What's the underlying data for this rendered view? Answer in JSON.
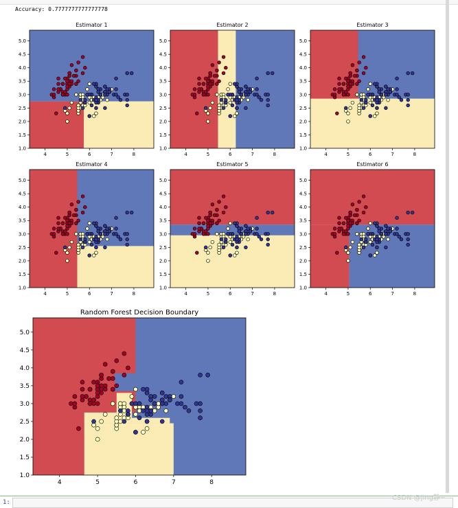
{
  "output": {
    "accuracy_text": "Accuracy: 0.7777777777777778",
    "prompt": "1:",
    "watermark": "CSDN @jing静~"
  },
  "colors": {
    "red": "#d24b50",
    "yellow": "#faecb4",
    "blue": "#6078b8",
    "pt_red": "#a50026",
    "pt_yellow": "#feffbe",
    "pt_blue": "#313695"
  },
  "points": [
    [
      5.1,
      3.5,
      0
    ],
    [
      4.9,
      3.0,
      0
    ],
    [
      4.7,
      3.2,
      0
    ],
    [
      4.6,
      3.1,
      0
    ],
    [
      5.0,
      3.6,
      0
    ],
    [
      5.4,
      3.9,
      0
    ],
    [
      4.6,
      3.4,
      0
    ],
    [
      5.0,
      3.4,
      0
    ],
    [
      4.4,
      2.9,
      0
    ],
    [
      4.9,
      3.1,
      0
    ],
    [
      5.4,
      3.7,
      0
    ],
    [
      4.8,
      3.4,
      0
    ],
    [
      4.8,
      3.0,
      0
    ],
    [
      4.3,
      3.0,
      0
    ],
    [
      5.8,
      4.0,
      0
    ],
    [
      5.7,
      4.4,
      0
    ],
    [
      5.4,
      3.9,
      0
    ],
    [
      5.1,
      3.5,
      0
    ],
    [
      5.7,
      3.8,
      0
    ],
    [
      5.1,
      3.8,
      0
    ],
    [
      5.4,
      3.4,
      0
    ],
    [
      5.1,
      3.7,
      0
    ],
    [
      4.6,
      3.6,
      0
    ],
    [
      5.1,
      3.3,
      0
    ],
    [
      4.8,
      3.4,
      0
    ],
    [
      5.0,
      3.0,
      0
    ],
    [
      5.0,
      3.4,
      0
    ],
    [
      5.2,
      3.5,
      0
    ],
    [
      5.2,
      3.4,
      0
    ],
    [
      4.7,
      3.2,
      0
    ],
    [
      4.8,
      3.1,
      0
    ],
    [
      5.4,
      3.4,
      0
    ],
    [
      5.2,
      4.1,
      0
    ],
    [
      5.5,
      4.2,
      0
    ],
    [
      4.9,
      3.1,
      0
    ],
    [
      5.0,
      3.2,
      0
    ],
    [
      5.5,
      3.5,
      0
    ],
    [
      4.9,
      3.6,
      0
    ],
    [
      4.4,
      3.0,
      0
    ],
    [
      5.1,
      3.4,
      0
    ],
    [
      5.0,
      3.5,
      0
    ],
    [
      4.5,
      2.3,
      0
    ],
    [
      4.4,
      3.2,
      0
    ],
    [
      5.0,
      3.5,
      0
    ],
    [
      5.1,
      3.8,
      0
    ],
    [
      4.8,
      3.0,
      0
    ],
    [
      5.1,
      3.8,
      0
    ],
    [
      4.6,
      3.2,
      0
    ],
    [
      5.3,
      3.7,
      0
    ],
    [
      5.0,
      3.3,
      0
    ],
    [
      7.0,
      3.2,
      1
    ],
    [
      6.4,
      3.2,
      1
    ],
    [
      6.9,
      3.1,
      1
    ],
    [
      5.5,
      2.3,
      1
    ],
    [
      6.5,
      2.8,
      1
    ],
    [
      5.7,
      2.8,
      1
    ],
    [
      6.3,
      3.3,
      1
    ],
    [
      4.9,
      2.4,
      1
    ],
    [
      6.6,
      2.9,
      1
    ],
    [
      5.2,
      2.7,
      1
    ],
    [
      5.0,
      2.0,
      1
    ],
    [
      5.9,
      3.0,
      1
    ],
    [
      6.0,
      2.2,
      1
    ],
    [
      6.1,
      2.9,
      1
    ],
    [
      5.6,
      2.9,
      1
    ],
    [
      6.7,
      3.1,
      1
    ],
    [
      5.6,
      3.0,
      1
    ],
    [
      5.8,
      2.7,
      1
    ],
    [
      6.2,
      2.2,
      1
    ],
    [
      5.6,
      2.5,
      1
    ],
    [
      5.9,
      3.2,
      1
    ],
    [
      6.1,
      2.8,
      1
    ],
    [
      6.3,
      2.5,
      1
    ],
    [
      6.1,
      2.8,
      1
    ],
    [
      6.4,
      2.9,
      1
    ],
    [
      6.6,
      3.0,
      1
    ],
    [
      6.8,
      2.8,
      1
    ],
    [
      6.7,
      3.0,
      1
    ],
    [
      6.0,
      2.9,
      1
    ],
    [
      5.7,
      2.6,
      1
    ],
    [
      5.5,
      2.4,
      1
    ],
    [
      5.5,
      2.4,
      1
    ],
    [
      5.8,
      2.7,
      1
    ],
    [
      6.0,
      2.7,
      1
    ],
    [
      5.4,
      3.0,
      1
    ],
    [
      6.0,
      3.4,
      1
    ],
    [
      6.7,
      3.1,
      1
    ],
    [
      6.3,
      2.3,
      1
    ],
    [
      5.6,
      3.0,
      1
    ],
    [
      5.5,
      2.5,
      1
    ],
    [
      5.5,
      2.6,
      1
    ],
    [
      6.1,
      3.0,
      1
    ],
    [
      5.8,
      2.6,
      1
    ],
    [
      5.0,
      2.3,
      1
    ],
    [
      5.6,
      2.7,
      1
    ],
    [
      5.7,
      3.0,
      1
    ],
    [
      5.7,
      2.9,
      1
    ],
    [
      6.2,
      2.9,
      1
    ],
    [
      5.1,
      2.5,
      1
    ],
    [
      5.7,
      2.8,
      1
    ],
    [
      6.3,
      3.3,
      2
    ],
    [
      5.8,
      2.7,
      2
    ],
    [
      7.1,
      3.0,
      2
    ],
    [
      6.3,
      2.9,
      2
    ],
    [
      6.5,
      3.0,
      2
    ],
    [
      7.6,
      3.0,
      2
    ],
    [
      4.9,
      2.5,
      2
    ],
    [
      7.3,
      2.9,
      2
    ],
    [
      6.7,
      2.5,
      2
    ],
    [
      7.2,
      3.6,
      2
    ],
    [
      6.5,
      3.2,
      2
    ],
    [
      6.4,
      2.7,
      2
    ],
    [
      6.8,
      3.0,
      2
    ],
    [
      5.7,
      2.5,
      2
    ],
    [
      5.8,
      2.8,
      2
    ],
    [
      6.4,
      3.2,
      2
    ],
    [
      6.5,
      3.0,
      2
    ],
    [
      7.7,
      3.8,
      2
    ],
    [
      7.7,
      2.6,
      2
    ],
    [
      6.0,
      2.2,
      2
    ],
    [
      6.9,
      3.2,
      2
    ],
    [
      5.6,
      2.8,
      2
    ],
    [
      7.7,
      2.8,
      2
    ],
    [
      6.3,
      2.7,
      2
    ],
    [
      6.7,
      3.3,
      2
    ],
    [
      7.2,
      3.2,
      2
    ],
    [
      6.2,
      2.8,
      2
    ],
    [
      6.1,
      3.0,
      2
    ],
    [
      6.4,
      2.8,
      2
    ],
    [
      7.2,
      3.0,
      2
    ],
    [
      7.4,
      2.8,
      2
    ],
    [
      7.9,
      3.8,
      2
    ],
    [
      6.4,
      2.8,
      2
    ],
    [
      6.3,
      2.8,
      2
    ],
    [
      6.1,
      2.6,
      2
    ],
    [
      7.7,
      3.0,
      2
    ],
    [
      6.3,
      3.4,
      2
    ],
    [
      6.4,
      3.1,
      2
    ],
    [
      6.0,
      3.0,
      2
    ],
    [
      6.9,
      3.1,
      2
    ],
    [
      6.7,
      3.1,
      2
    ],
    [
      6.9,
      3.1,
      2
    ],
    [
      5.8,
      2.7,
      2
    ],
    [
      6.8,
      3.2,
      2
    ],
    [
      6.7,
      3.3,
      2
    ],
    [
      6.7,
      3.0,
      2
    ],
    [
      6.3,
      2.5,
      2
    ],
    [
      6.5,
      3.0,
      2
    ],
    [
      6.2,
      3.4,
      2
    ],
    [
      5.9,
      3.0,
      2
    ]
  ],
  "chart_data": [
    {
      "type": "scatter",
      "title": "Estimator 1",
      "xlim": [
        3.3,
        8.9
      ],
      "ylim": [
        1.0,
        5.4
      ],
      "xticks": [
        4,
        5,
        6,
        7,
        8
      ],
      "yticks": [
        1.0,
        1.5,
        2.0,
        2.5,
        3.0,
        3.5,
        4.0,
        4.5,
        5.0
      ],
      "regions": [
        {
          "class": 0,
          "x": [
            3.3,
            5.75
          ],
          "y": [
            1.0,
            2.75
          ]
        },
        {
          "class": 1,
          "x": [
            5.75,
            8.9
          ],
          "y": [
            1.0,
            2.75
          ]
        },
        {
          "class": 2,
          "x": [
            3.3,
            8.9
          ],
          "y": [
            2.75,
            5.4
          ]
        }
      ]
    },
    {
      "type": "scatter",
      "title": "Estimator 2",
      "xlim": [
        3.3,
        8.9
      ],
      "ylim": [
        1.0,
        5.4
      ],
      "xticks": [
        4,
        5,
        6,
        7,
        8
      ],
      "yticks": [
        1.0,
        1.5,
        2.0,
        2.5,
        3.0,
        3.5,
        4.0,
        4.5,
        5.0
      ],
      "regions": [
        {
          "class": 0,
          "x": [
            3.3,
            5.45
          ],
          "y": [
            1.0,
            5.4
          ]
        },
        {
          "class": 1,
          "x": [
            5.45,
            6.25
          ],
          "y": [
            1.0,
            5.4
          ]
        },
        {
          "class": 2,
          "x": [
            6.25,
            8.9
          ],
          "y": [
            1.0,
            5.4
          ]
        }
      ]
    },
    {
      "type": "scatter",
      "title": "Estimator 3",
      "xlim": [
        3.3,
        8.9
      ],
      "ylim": [
        1.0,
        5.4
      ],
      "xticks": [
        4,
        5,
        6,
        7,
        8
      ],
      "yticks": [
        1.0,
        1.5,
        2.0,
        2.5,
        3.0,
        3.5,
        4.0,
        4.5,
        5.0
      ],
      "regions": [
        {
          "class": 1,
          "x": [
            3.3,
            8.9
          ],
          "y": [
            1.0,
            2.85
          ]
        },
        {
          "class": 0,
          "x": [
            3.3,
            5.45
          ],
          "y": [
            2.85,
            5.4
          ]
        },
        {
          "class": 2,
          "x": [
            5.45,
            8.9
          ],
          "y": [
            2.85,
            5.4
          ]
        }
      ]
    },
    {
      "type": "scatter",
      "title": "Estimator 4",
      "xlim": [
        3.3,
        8.9
      ],
      "ylim": [
        1.0,
        5.4
      ],
      "xticks": [
        4,
        5,
        6,
        7,
        8
      ],
      "yticks": [
        1.0,
        1.5,
        2.0,
        2.5,
        3.0,
        3.5,
        4.0,
        4.5,
        5.0
      ],
      "regions": [
        {
          "class": 0,
          "x": [
            3.3,
            5.45
          ],
          "y": [
            1.0,
            5.4
          ]
        },
        {
          "class": 1,
          "x": [
            5.45,
            8.9
          ],
          "y": [
            1.0,
            2.55
          ]
        },
        {
          "class": 2,
          "x": [
            5.45,
            8.9
          ],
          "y": [
            2.55,
            5.4
          ]
        }
      ]
    },
    {
      "type": "scatter",
      "title": "Estimator 5",
      "xlim": [
        3.3,
        8.9
      ],
      "ylim": [
        1.0,
        5.4
      ],
      "xticks": [
        4,
        5,
        6,
        7,
        8
      ],
      "yticks": [
        1.0,
        1.5,
        2.0,
        2.5,
        3.0,
        3.5,
        4.0,
        4.5,
        5.0
      ],
      "regions": [
        {
          "class": 1,
          "x": [
            3.3,
            8.9
          ],
          "y": [
            1.0,
            2.95
          ]
        },
        {
          "class": 2,
          "x": [
            3.3,
            8.9
          ],
          "y": [
            2.95,
            3.35
          ]
        },
        {
          "class": 0,
          "x": [
            3.3,
            8.9
          ],
          "y": [
            3.35,
            5.4
          ]
        }
      ]
    },
    {
      "type": "scatter",
      "title": "Estimator 6",
      "xlim": [
        3.3,
        8.9
      ],
      "ylim": [
        1.0,
        5.4
      ],
      "xticks": [
        4,
        5,
        6,
        7,
        8
      ],
      "yticks": [
        1.0,
        1.5,
        2.0,
        2.5,
        3.0,
        3.5,
        4.0,
        4.5,
        5.0
      ],
      "regions": [
        {
          "class": 0,
          "x": [
            3.3,
            5.05
          ],
          "y": [
            1.0,
            3.35
          ]
        },
        {
          "class": 2,
          "x": [
            5.05,
            8.9
          ],
          "y": [
            1.0,
            3.35
          ]
        },
        {
          "class": 0,
          "x": [
            3.3,
            8.9
          ],
          "y": [
            3.35,
            5.4
          ]
        }
      ]
    },
    {
      "type": "scatter",
      "title": "Random Forest Decision Boundary",
      "xlim": [
        3.3,
        8.9
      ],
      "ylim": [
        1.0,
        5.4
      ],
      "xticks": [
        4,
        5,
        6,
        7,
        8
      ],
      "yticks": [
        1.0,
        1.5,
        2.0,
        2.5,
        3.0,
        3.5,
        4.0,
        4.5,
        5.0
      ],
      "regions": [
        {
          "class": 2,
          "x": [
            3.3,
            8.9
          ],
          "y": [
            1.0,
            5.4
          ]
        },
        {
          "class": 0,
          "x": [
            3.3,
            4.65
          ],
          "y": [
            1.0,
            5.4
          ]
        },
        {
          "class": 0,
          "x": [
            4.65,
            6.0
          ],
          "y": [
            2.75,
            5.4
          ]
        },
        {
          "class": 2,
          "x": [
            5.45,
            6.0
          ],
          "y": [
            3.35,
            3.85
          ]
        },
        {
          "class": 1,
          "x": [
            4.65,
            7.0
          ],
          "y": [
            1.0,
            2.45
          ]
        },
        {
          "class": 1,
          "x": [
            4.65,
            5.5
          ],
          "y": [
            2.45,
            2.75
          ]
        },
        {
          "class": 1,
          "x": [
            5.5,
            5.9
          ],
          "y": [
            2.45,
            3.3
          ]
        },
        {
          "class": 1,
          "x": [
            5.9,
            6.9
          ],
          "y": [
            2.45,
            2.6
          ]
        }
      ]
    }
  ]
}
